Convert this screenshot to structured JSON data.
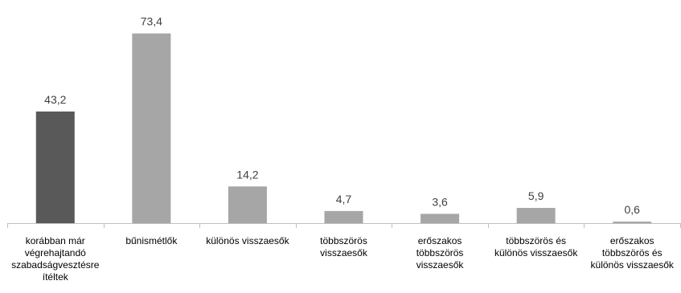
{
  "chart_data": {
    "type": "bar",
    "categories": [
      [
        "korábban már",
        "végrehajtandó",
        "szabadságvesztésre",
        "ítéltek"
      ],
      [
        "bűnismétlők"
      ],
      [
        "különös visszaesők"
      ],
      [
        "többszörös",
        "visszaesők"
      ],
      [
        "erőszakos",
        "többszörös",
        "visszaesők"
      ],
      [
        "többszörös és",
        "különös visszaesők"
      ],
      [
        "erőszakos",
        "többszörös és",
        "különös visszaesők"
      ]
    ],
    "values": [
      43.2,
      73.4,
      14.2,
      4.7,
      3.6,
      5.9,
      0.6
    ],
    "value_labels": [
      "43,2",
      "73,4",
      "14,2",
      "4,7",
      "3,6",
      "5,9",
      "0,6"
    ],
    "title": "",
    "xlabel": "",
    "ylabel": "",
    "ylim": [
      0,
      80
    ],
    "grid": false,
    "colors": [
      "#595959",
      "#a6a6a6",
      "#a6a6a6",
      "#a6a6a6",
      "#a6a6a6",
      "#a6a6a6",
      "#a6a6a6"
    ]
  }
}
